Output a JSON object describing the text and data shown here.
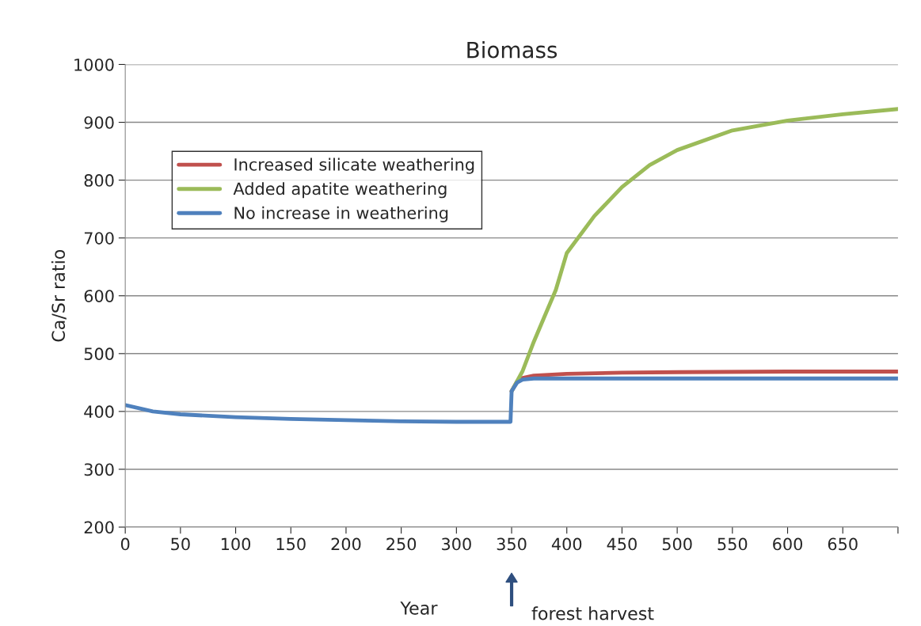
{
  "chart_data": {
    "type": "line",
    "title": "Biomass",
    "xlabel": "Year",
    "ylabel": "Ca/Sr ratio",
    "xlim": [
      0,
      700
    ],
    "xticks": [
      0,
      50,
      100,
      150,
      200,
      250,
      300,
      350,
      400,
      450,
      500,
      550,
      600,
      650,
      {
        "value": 700,
        "label": null
      }
    ],
    "ylim": [
      200,
      1000
    ],
    "yticks": [
      200,
      300,
      400,
      500,
      600,
      700,
      800,
      900,
      1000
    ],
    "grid": "y",
    "legend": "top left",
    "marker": "none",
    "line_style": "solid",
    "annotations": [
      "forest harvest"
    ],
    "series": [
      {
        "name": "Increased silicate weathering",
        "color": "#c0504d",
        "x": [
          350,
          355,
          360,
          370,
          400,
          450,
          500,
          600,
          700
        ],
        "values": [
          435,
          452,
          458,
          462,
          465,
          467,
          468,
          469,
          469
        ]
      },
      {
        "name": "Added apatite weathering",
        "color": "#9bbb59",
        "x": [
          350,
          360,
          370,
          380,
          390,
          400,
          425,
          450,
          475,
          500,
          550,
          600,
          650,
          700
        ],
        "values": [
          435,
          470,
          520,
          565,
          610,
          674,
          738,
          788,
          826,
          852,
          886,
          903,
          914,
          923
        ]
      },
      {
        "name": "No increase in weathering",
        "color": "#4f81bd",
        "x": [
          0,
          25,
          50,
          100,
          150,
          200,
          250,
          300,
          349,
          350,
          355,
          360,
          370,
          400,
          500,
          700
        ],
        "values": [
          411,
          400,
          395,
          390,
          387,
          385,
          383,
          382,
          382,
          435,
          450,
          455,
          457,
          457,
          457,
          457
        ]
      }
    ]
  }
}
